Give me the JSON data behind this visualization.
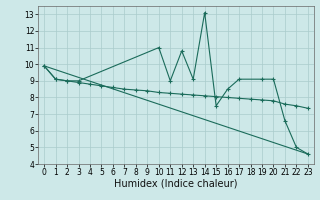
{
  "xlabel": "Humidex (Indice chaleur)",
  "background_color": "#cde8e8",
  "grid_color": "#aacccc",
  "line_color": "#1a6b5a",
  "xlim": [
    -0.5,
    23.5
  ],
  "ylim": [
    4,
    13.5
  ],
  "yticks": [
    4,
    5,
    6,
    7,
    8,
    9,
    10,
    11,
    12,
    13
  ],
  "xticks": [
    0,
    1,
    2,
    3,
    4,
    5,
    6,
    7,
    8,
    9,
    10,
    11,
    12,
    13,
    14,
    15,
    16,
    17,
    18,
    19,
    20,
    21,
    22,
    23
  ],
  "smooth_x": [
    0,
    1,
    2,
    3,
    4,
    5,
    6,
    7,
    8,
    9,
    10,
    11,
    12,
    13,
    14,
    15,
    16,
    17,
    18,
    19,
    20,
    21,
    22,
    23
  ],
  "smooth_y": [
    9.9,
    9.1,
    9.0,
    8.9,
    8.8,
    8.7,
    8.6,
    8.5,
    8.45,
    8.4,
    8.3,
    8.25,
    8.2,
    8.15,
    8.1,
    8.05,
    8.0,
    7.95,
    7.9,
    7.85,
    7.8,
    7.6,
    7.5,
    7.35
  ],
  "spiky_x": [
    0,
    1,
    2,
    3,
    10,
    11,
    12,
    13,
    14,
    15,
    16,
    17,
    19,
    20,
    21,
    22,
    23
  ],
  "spiky_y": [
    9.9,
    9.1,
    9.0,
    9.0,
    11.0,
    9.0,
    10.8,
    9.1,
    13.1,
    7.5,
    8.5,
    9.1,
    9.1,
    9.1,
    6.6,
    5.0,
    4.6
  ],
  "trend_x": [
    0,
    23
  ],
  "trend_y": [
    9.9,
    4.6
  ],
  "xlabel_fontsize": 7,
  "tick_fontsize": 5.5
}
